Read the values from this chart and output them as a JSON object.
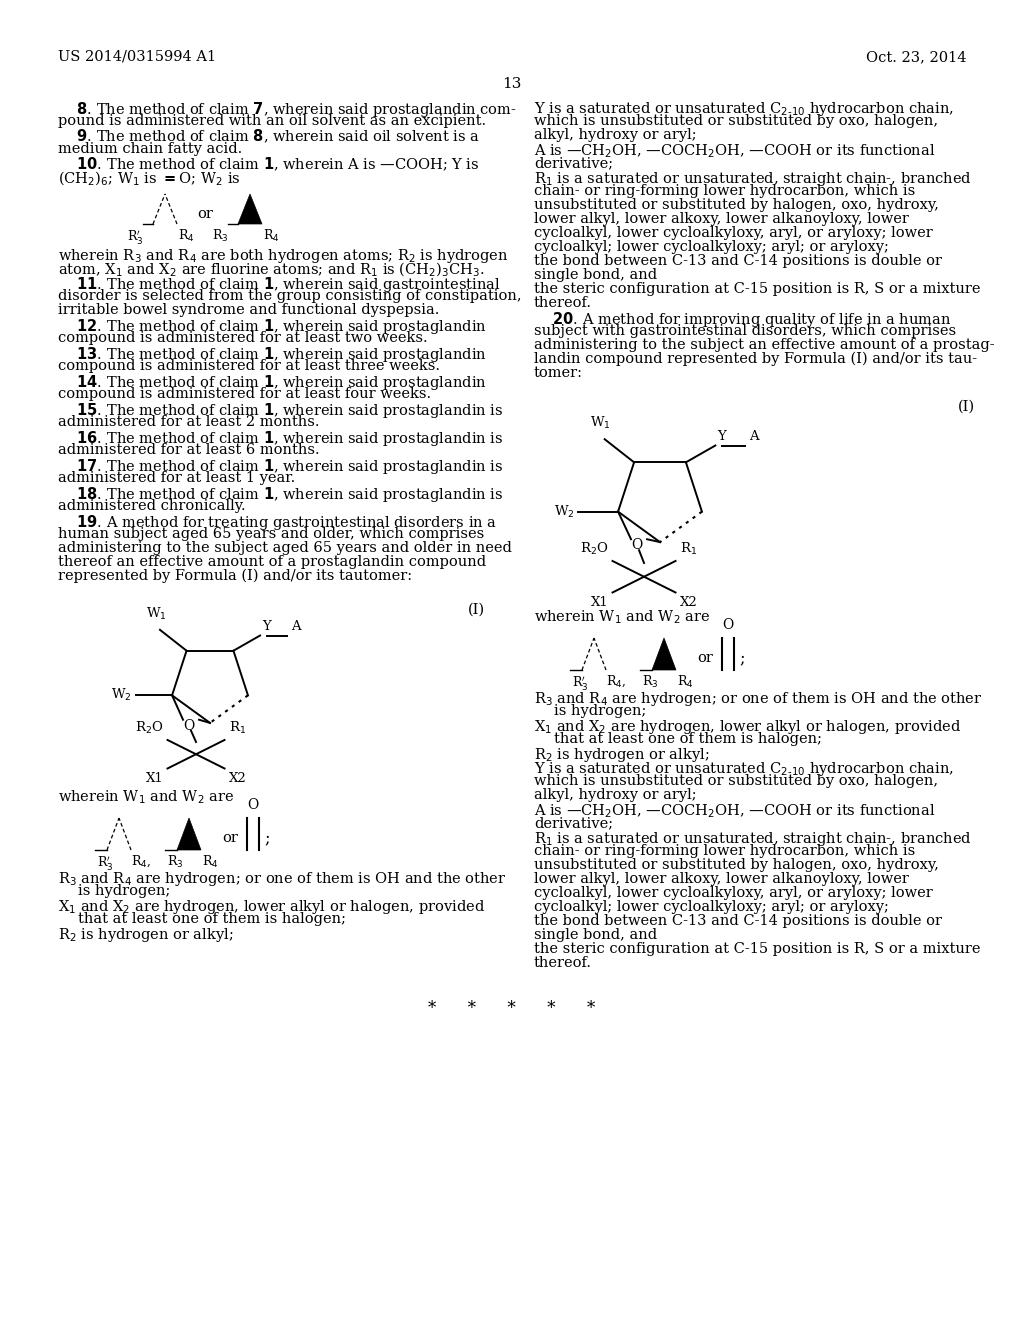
{
  "background_color": "#ffffff",
  "page_number": "13",
  "header_left": "US 2014/0315994 A1",
  "header_right": "Oct. 23, 2014",
  "font_family": "DejaVu Serif"
}
